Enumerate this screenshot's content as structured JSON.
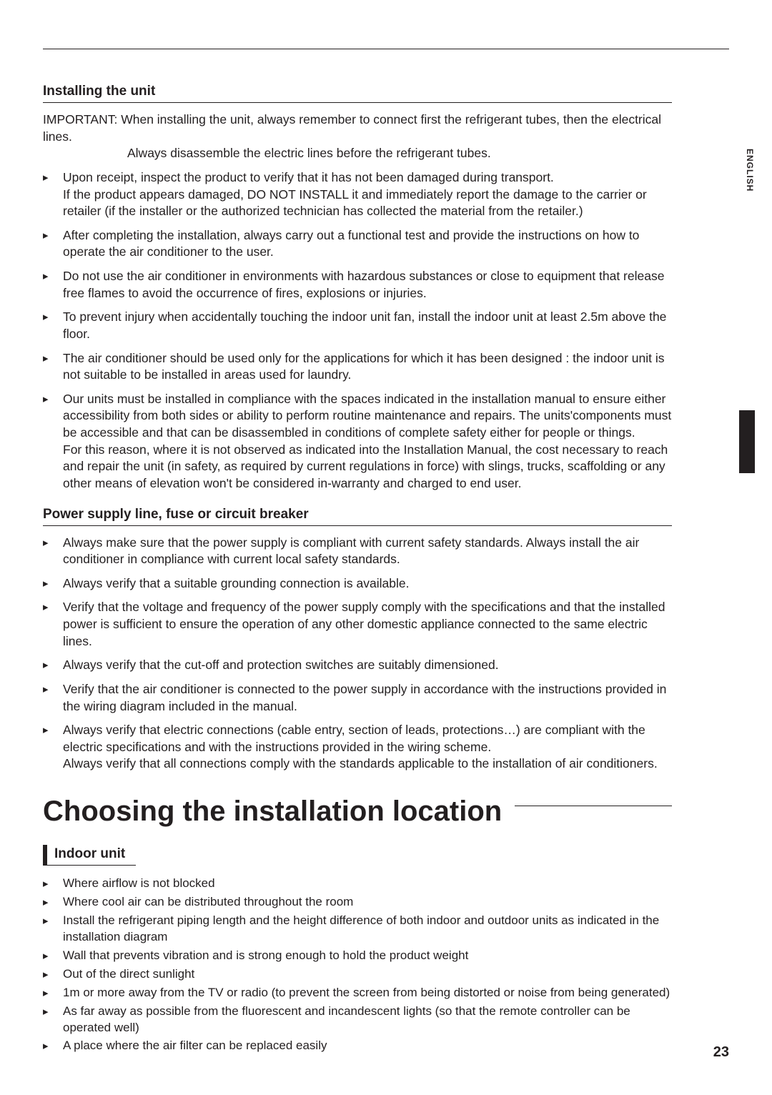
{
  "page_number": "23",
  "language_tab": "ENGLISH",
  "section1": {
    "heading": "Installing the unit",
    "important_line1": "IMPORTANT: When installing the unit, always remember to connect first the refrigerant tubes, then the electrical lines.",
    "important_line2": "Always disassemble the electric lines before the refrigerant tubes.",
    "items": [
      "Upon receipt, inspect the product to verify that it has not been damaged during transport.\nIf the product appears damaged, DO NOT INSTALL it and immediately report the damage to the carrier or retailer (if the installer or the authorized technician has collected the material from the retailer.)",
      "After completing the installation, always carry out a functional test and provide the instructions on how to operate the air conditioner to the user.",
      "Do not use the air conditioner in environments with hazardous substances or close to equipment that release free flames to avoid the occurrence of fires, explosions or injuries.",
      "To prevent injury when accidentally touching the indoor unit fan, install the indoor unit at least 2.5m above the floor.",
      "The air conditioner should be used only for the applications for which it has been designed : the indoor unit is not suitable to be installed in areas used for laundry.",
      "Our units must be installed in compliance with the spaces indicated in the installation manual to ensure either accessibility from both sides or ability to perform routine maintenance and repairs. The units'components must be accessible and that can be disassembled in conditions of complete safety either for people or things.\nFor this reason, where it is not observed as indicated into the Installation Manual, the cost necessary to reach and repair the unit (in safety, as required by current regulations in force) with slings, trucks, scaffolding or any other means of elevation won't be considered in-warranty and charged to end user."
    ]
  },
  "section2": {
    "heading": "Power supply line, fuse or circuit breaker",
    "items": [
      "Always make sure that the power supply is compliant with current safety standards. Always install the air conditioner in compliance with current local safety standards.",
      "Always verify that a suitable grounding connection is available.",
      "Verify that the voltage and frequency of the power supply comply with the specifications and that the installed power is sufficient to ensure the operation of any other domestic appliance connected to the same electric lines.",
      "Always verify that the cut-off and protection switches are suitably dimensioned.",
      "Verify that the air conditioner is connected to the power supply in accordance with the instructions provided in the wiring diagram included in the manual.",
      "Always verify that electric connections (cable entry, section of leads, protections…) are compliant with the electric specifications and with the instructions provided in the wiring scheme.\nAlways verify that all connections comply with the standards applicable to the installation of air conditioners."
    ]
  },
  "main_heading": "Choosing the installation location",
  "section3": {
    "heading": "Indoor unit",
    "items": [
      "Where airflow is not blocked",
      "Where cool air can be distributed throughout the room",
      "Install the refrigerant piping length and the height difference of both indoor and outdoor units as indicated in the installation diagram",
      "Wall that prevents vibration and is strong enough to hold the product weight",
      "Out of the direct sunlight",
      "1m or more away from the TV or radio (to prevent the screen from being distorted or noise from being generated)",
      "As far away as possible from the fluorescent and incandescent lights (so that the remote controller can be operated well)",
      "A place where the air filter can be replaced easily"
    ]
  }
}
